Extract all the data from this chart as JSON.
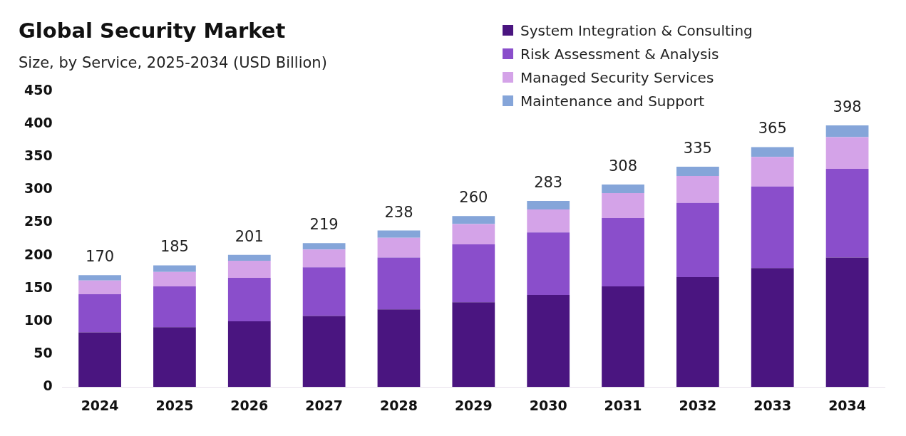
{
  "chart_data": {
    "type": "bar",
    "title": "Global Security Market",
    "subtitle": "Size, by Service, 2025-2034 (USD Billion)",
    "categories": [
      "2024",
      "2025",
      "2026",
      "2027",
      "2028",
      "2029",
      "2030",
      "2031",
      "2032",
      "2033",
      "2034"
    ],
    "stacked": true,
    "ylim": [
      0,
      450
    ],
    "yticks": [
      0,
      50,
      100,
      150,
      200,
      250,
      300,
      350,
      400,
      450
    ],
    "grid": false,
    "legend": "top right",
    "series": [
      {
        "name": "System Integration & Consulting",
        "color": "#4a1580",
        "values": [
          83,
          91,
          100,
          108,
          118,
          129,
          140,
          153,
          167,
          181,
          197
        ]
      },
      {
        "name": "Risk Assessment & Analysis",
        "color": "#8a4ecb",
        "values": [
          58,
          62,
          66,
          74,
          79,
          88,
          95,
          104,
          113,
          124,
          135
        ]
      },
      {
        "name": "Managed Security Services",
        "color": "#d4a3e8",
        "values": [
          21,
          22,
          26,
          27,
          30,
          31,
          35,
          38,
          41,
          45,
          48
        ]
      },
      {
        "name": "Maintenance and Support",
        "color": "#85a5d9",
        "values": [
          8,
          10,
          9,
          10,
          11,
          12,
          13,
          13,
          14,
          15,
          18
        ]
      }
    ],
    "totals": [
      "170",
      "185",
      "201",
      "219",
      "238",
      "260",
      "283",
      "308",
      "335",
      "365",
      "398"
    ]
  }
}
